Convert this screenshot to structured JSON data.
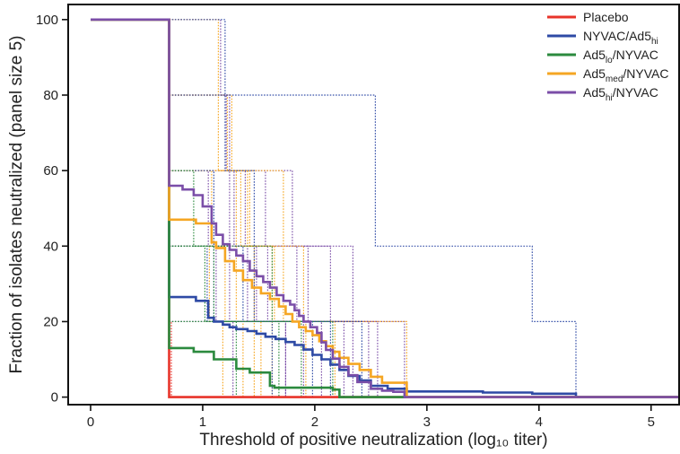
{
  "chart_data": {
    "type": "line",
    "subtype": "step",
    "title": "",
    "xlabel": "Threshold of positive neutralization (log₁₀ titer)",
    "ylabel": "Fraction of isolates neutralized (panel size 5)",
    "xlim": [
      -0.2,
      5.25
    ],
    "ylim": [
      -2,
      104
    ],
    "x_ticks": [
      0,
      1,
      2,
      3,
      4,
      5
    ],
    "y_ticks": [
      0,
      20,
      40,
      60,
      80,
      100
    ],
    "grid": false,
    "legend_position": "top-right",
    "series": [
      {
        "name": "Placebo",
        "legend_base": "Placebo",
        "legend_sub": "",
        "legend_suffix": "",
        "color": "#e8342a",
        "x": [
          0,
          0.7,
          0.7,
          5.25
        ],
        "y": [
          100,
          100,
          0,
          0
        ]
      },
      {
        "name": "NYVAC/Ad5hi",
        "legend_base": "NYVAC/Ad5",
        "legend_sub": "hi",
        "legend_suffix": "",
        "color": "#2e4aa5",
        "x": [
          0,
          0.7,
          0.7,
          0.94,
          1.05,
          1.1,
          1.18,
          1.24,
          1.3,
          1.4,
          1.48,
          1.56,
          1.65,
          1.74,
          1.82,
          1.9,
          1.98,
          2.06,
          2.14,
          2.22,
          2.3,
          2.4,
          2.5,
          2.65,
          2.82,
          3.5,
          3.94,
          4.33,
          4.33,
          5.25
        ],
        "y": [
          100,
          100,
          26.5,
          25.5,
          21,
          20,
          19.2,
          18.5,
          18,
          17.5,
          16.8,
          16,
          15.4,
          14.6,
          13.8,
          12.6,
          11.2,
          10,
          8.6,
          7.2,
          5.6,
          4.4,
          3,
          2.2,
          1.5,
          1.2,
          0.9,
          0.4,
          0,
          0
        ]
      },
      {
        "name": "Ad5lo/NYVAC",
        "legend_base": "Ad5",
        "legend_sub": "lo",
        "legend_suffix": "/NYVAC",
        "color": "#2b8a3e",
        "x": [
          0,
          0.7,
          0.7,
          0.92,
          1.1,
          1.3,
          1.42,
          1.6,
          1.64,
          2.16,
          2.22,
          5.25
        ],
        "y": [
          100,
          100,
          13,
          12,
          10,
          7.5,
          6.5,
          3,
          2.5,
          2,
          0,
          0
        ]
      },
      {
        "name": "Ad5med/NYVAC",
        "legend_base": "Ad5",
        "legend_sub": "med",
        "legend_suffix": "/NYVAC",
        "color": "#f5a623",
        "x": [
          0,
          0.7,
          0.7,
          0.94,
          1.08,
          1.12,
          1.2,
          1.28,
          1.36,
          1.44,
          1.52,
          1.6,
          1.68,
          1.74,
          1.8,
          1.86,
          1.92,
          1.98,
          2.04,
          2.1,
          2.16,
          2.22,
          2.3,
          2.4,
          2.5,
          2.6,
          2.82,
          2.82,
          5.25
        ],
        "y": [
          100,
          100,
          47,
          46,
          41,
          39.5,
          36,
          33.5,
          31,
          29,
          27.5,
          26,
          24,
          22,
          20,
          18.5,
          17.5,
          16.4,
          14.8,
          13.5,
          12,
          10.4,
          8.8,
          7.2,
          5.4,
          3.8,
          2.2,
          0,
          0
        ]
      },
      {
        "name": "Ad5hi/NYVAC",
        "legend_base": "Ad5",
        "legend_sub": "hi",
        "legend_suffix": "/NYVAC",
        "color": "#7b4ea8",
        "x": [
          0,
          0.7,
          0.7,
          0.82,
          0.92,
          1.0,
          1.08,
          1.12,
          1.18,
          1.24,
          1.3,
          1.36,
          1.42,
          1.48,
          1.54,
          1.6,
          1.66,
          1.72,
          1.78,
          1.82,
          1.86,
          1.9,
          1.96,
          2.02,
          2.06,
          2.1,
          2.16,
          2.22,
          2.3,
          2.38,
          2.5,
          2.6,
          2.7,
          2.8,
          2.8,
          5.25
        ],
        "y": [
          100,
          100,
          56,
          55,
          53.5,
          50.5,
          46,
          43,
          40.5,
          39,
          37.5,
          36,
          33.5,
          32,
          30.5,
          29,
          27,
          25.5,
          24.5,
          23,
          21.5,
          20,
          18.5,
          17,
          14.5,
          12.5,
          10.2,
          8,
          5.8,
          4,
          2.2,
          1.7,
          1.4,
          1.0,
          0,
          0
        ]
      }
    ],
    "individual_curves": [
      {
        "color": "#7b4ea8",
        "x": [
          0.7,
          1.05,
          1.05,
          1.12,
          1.12,
          1.27,
          1.27
        ],
        "y": [
          60,
          60,
          40,
          40,
          20,
          20,
          0
        ]
      },
      {
        "color": "#7b4ea8",
        "x": [
          0.7,
          1.21,
          1.21,
          1.38,
          1.38,
          1.58,
          1.58,
          1.74,
          1.74
        ],
        "y": [
          80,
          80,
          60,
          60,
          40,
          40,
          20,
          20,
          0
        ]
      },
      {
        "color": "#7b4ea8",
        "x": [
          0.7,
          1.28,
          1.28,
          1.48,
          1.48,
          1.74,
          1.74
        ],
        "y": [
          60,
          60,
          40,
          40,
          20,
          20,
          0
        ]
      },
      {
        "color": "#7b4ea8",
        "x": [
          0.7,
          1.4,
          1.4,
          1.66,
          1.66,
          1.9,
          1.9
        ],
        "y": [
          40,
          40,
          20,
          20,
          20,
          20,
          0
        ]
      },
      {
        "color": "#7b4ea8",
        "x": [
          0.7,
          1.56,
          1.56,
          1.84,
          1.84,
          2.06,
          2.06
        ],
        "y": [
          60,
          60,
          40,
          40,
          20,
          20,
          0
        ]
      },
      {
        "color": "#7b4ea8",
        "x": [
          0.7,
          1.8,
          1.8,
          2.14,
          2.14,
          2.34,
          2.34
        ],
        "y": [
          60,
          60,
          40,
          40,
          20,
          20,
          0
        ]
      },
      {
        "color": "#7b4ea8",
        "x": [
          0.7,
          2.08,
          2.08,
          2.34,
          2.34,
          2.8,
          2.8
        ],
        "y": [
          40,
          40,
          40,
          40,
          20,
          20,
          0
        ]
      },
      {
        "color": "#7b4ea8",
        "x": [
          0.7,
          1.16,
          1.16,
          1.24,
          1.24,
          2.48,
          2.48
        ],
        "y": [
          100,
          100,
          80,
          80,
          20,
          20,
          0
        ]
      },
      {
        "color": "#7b4ea8",
        "x": [
          0.7,
          1.94,
          1.94,
          2.26,
          2.26
        ],
        "y": [
          40,
          40,
          20,
          20,
          0
        ]
      },
      {
        "color": "#7b4ea8",
        "x": [
          0.7,
          2.22,
          2.22,
          2.56,
          2.56
        ],
        "y": [
          20,
          20,
          20,
          20,
          0
        ]
      },
      {
        "color": "#f5a623",
        "x": [
          0.7,
          1.08,
          1.08,
          1.2,
          1.2,
          1.36,
          1.36
        ],
        "y": [
          60,
          60,
          40,
          40,
          20,
          20,
          0
        ]
      },
      {
        "color": "#f5a623",
        "x": [
          0.7,
          1.14,
          1.14,
          1.4,
          1.4,
          1.62,
          1.62
        ],
        "y": [
          100,
          100,
          60,
          60,
          40,
          40,
          0
        ]
      },
      {
        "color": "#f5a623",
        "x": [
          0.7,
          1.22,
          1.22,
          1.3,
          1.3,
          1.52,
          1.52
        ],
        "y": [
          80,
          80,
          60,
          60,
          20,
          20,
          0
        ]
      },
      {
        "color": "#f5a623",
        "x": [
          0.7,
          1.42,
          1.42,
          1.64,
          1.64,
          1.92,
          1.92
        ],
        "y": [
          60,
          60,
          40,
          40,
          20,
          20,
          0
        ]
      },
      {
        "color": "#f5a623",
        "x": [
          0.7,
          1.56,
          1.56,
          1.9,
          1.9,
          2.18,
          2.18
        ],
        "y": [
          40,
          40,
          40,
          40,
          20,
          20,
          0
        ]
      },
      {
        "color": "#f5a623",
        "x": [
          0.7,
          1.72,
          1.72,
          2.02,
          2.02,
          2.82,
          2.82
        ],
        "y": [
          60,
          60,
          20,
          20,
          20,
          20,
          0
        ]
      },
      {
        "color": "#f5a623",
        "x": [
          0.7,
          1.26,
          1.26,
          1.34,
          1.34,
          1.46,
          1.46
        ],
        "y": [
          80,
          80,
          60,
          60,
          40,
          40,
          0
        ]
      },
      {
        "color": "#f5a623",
        "x": [
          0.7,
          1.06,
          1.06,
          1.18,
          1.18
        ],
        "y": [
          40,
          40,
          20,
          20,
          0
        ]
      },
      {
        "color": "#2e4aa5",
        "x": [
          0.7,
          2.54,
          2.54,
          3.94,
          3.94,
          4.33,
          4.33
        ],
        "y": [
          80,
          80,
          40,
          40,
          20,
          20,
          0
        ]
      },
      {
        "color": "#2e4aa5",
        "x": [
          0.7,
          1.1,
          1.1,
          1.26,
          1.26,
          2.14,
          2.14
        ],
        "y": [
          60,
          60,
          20,
          20,
          20,
          20,
          0
        ]
      },
      {
        "color": "#2e4aa5",
        "x": [
          0.7,
          1.2,
          1.2,
          1.46,
          1.46,
          1.98,
          1.98
        ],
        "y": [
          100,
          100,
          60,
          60,
          20,
          20,
          0
        ]
      },
      {
        "color": "#2e4aa5",
        "x": [
          0.7,
          1.04,
          1.04,
          1.62,
          1.62
        ],
        "y": [
          40,
          40,
          20,
          20,
          0
        ]
      },
      {
        "color": "#2e4aa5",
        "x": [
          0.7,
          1.36,
          1.36,
          2.42,
          2.42
        ],
        "y": [
          40,
          40,
          20,
          20,
          0
        ]
      },
      {
        "color": "#2b8a3e",
        "x": [
          0.7,
          0.92,
          0.92,
          1.1,
          1.1,
          1.3,
          1.3
        ],
        "y": [
          60,
          60,
          40,
          40,
          20,
          20,
          0
        ]
      },
      {
        "color": "#2b8a3e",
        "x": [
          0.7,
          1.02,
          1.02,
          1.44,
          1.44,
          1.68,
          1.68
        ],
        "y": [
          40,
          40,
          20,
          20,
          20,
          20,
          0
        ]
      },
      {
        "color": "#2b8a3e",
        "x": [
          0.7,
          1.22,
          1.22,
          1.52,
          1.52,
          2.16,
          2.16
        ],
        "y": [
          20,
          20,
          20,
          20,
          20,
          20,
          0
        ]
      },
      {
        "color": "#2b8a3e",
        "x": [
          0.7,
          1.62,
          1.62,
          1.88,
          1.88
        ],
        "y": [
          40,
          40,
          20,
          20,
          0
        ]
      },
      {
        "color": "#e8342a",
        "x": [
          0.7,
          0.72,
          0.72
        ],
        "y": [
          20,
          20,
          0
        ]
      }
    ]
  }
}
